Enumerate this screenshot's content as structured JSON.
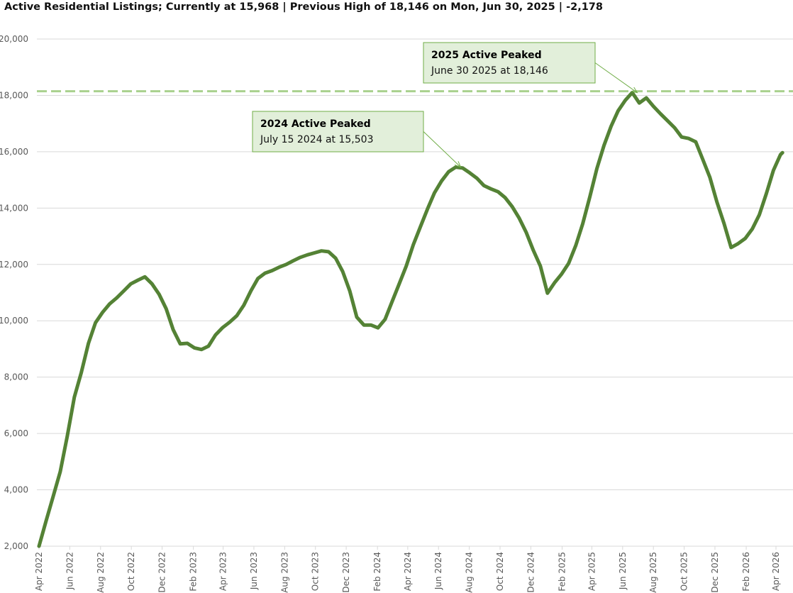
{
  "chart_data": {
    "type": "line",
    "title": "Active Residential Listings; Currently at 15,968 | Previous High of 18,146 on Mon, Jun 30, 2025 | -2,178",
    "xlabel": "",
    "ylabel": "",
    "ylim": [
      2000,
      20000
    ],
    "yticks": [
      "2,000",
      "4,000",
      "6,000",
      "8,000",
      "10,000",
      "12,000",
      "14,000",
      "16,000",
      "18,000",
      "20,000"
    ],
    "ytick_values": [
      2000,
      4000,
      6000,
      8000,
      10000,
      12000,
      14000,
      16000,
      18000,
      20000
    ],
    "xlim": [
      "2022-04-01",
      "2026-04-25"
    ],
    "xticks": [
      {
        "date": "2022-04-01",
        "label": "Apr 2022"
      },
      {
        "date": "2022-06-01",
        "label": "Jun 2022"
      },
      {
        "date": "2022-08-01",
        "label": "Aug 2022"
      },
      {
        "date": "2022-10-01",
        "label": "Oct 2022"
      },
      {
        "date": "2022-12-01",
        "label": "Dec 2022"
      },
      {
        "date": "2023-02-01",
        "label": "Feb 2023"
      },
      {
        "date": "2023-04-01",
        "label": "Apr 2023"
      },
      {
        "date": "2023-06-01",
        "label": "Jun 2023"
      },
      {
        "date": "2023-08-01",
        "label": "Aug 2023"
      },
      {
        "date": "2023-10-01",
        "label": "Oct 2023"
      },
      {
        "date": "2023-12-01",
        "label": "Dec 2023"
      },
      {
        "date": "2024-02-01",
        "label": "Feb 2024"
      },
      {
        "date": "2024-04-01",
        "label": "Apr 2024"
      },
      {
        "date": "2024-06-01",
        "label": "Jun 2024"
      },
      {
        "date": "2024-08-01",
        "label": "Aug 2024"
      },
      {
        "date": "2024-10-01",
        "label": "Oct 2024"
      },
      {
        "date": "2024-12-01",
        "label": "Dec 2024"
      },
      {
        "date": "2025-02-01",
        "label": "Feb 2025"
      },
      {
        "date": "2025-04-01",
        "label": "Apr 2025"
      },
      {
        "date": "2025-06-01",
        "label": "Jun 2025"
      },
      {
        "date": "2025-08-01",
        "label": "Aug 2025"
      },
      {
        "date": "2025-10-01",
        "label": "Oct 2025"
      },
      {
        "date": "2025-12-01",
        "label": "Dec 2025"
      },
      {
        "date": "2026-02-01",
        "label": "Feb 2026"
      },
      {
        "date": "2026-04-01",
        "label": "Apr 2026"
      }
    ],
    "grid": true,
    "series": [
      {
        "name": "Active Residential Listings",
        "color": "#548235",
        "start_date": "2022-04-01",
        "interval_days": 14,
        "values": [
          2000,
          2900,
          3760,
          4640,
          5900,
          7290,
          8170,
          9200,
          9930,
          10300,
          10600,
          10810,
          11060,
          11310,
          11440,
          11560,
          11310,
          10940,
          10430,
          9680,
          9180,
          9200,
          9040,
          8980,
          9100,
          9500,
          9760,
          9950,
          10180,
          10550,
          11060,
          11500,
          11690,
          11780,
          11900,
          12000,
          12130,
          12250,
          12340,
          12410,
          12480,
          12450,
          12220,
          11750,
          11060,
          10130,
          9850,
          9850,
          9750,
          10050,
          10680,
          11310,
          11940,
          12700,
          13330,
          13960,
          14540,
          14960,
          15290,
          15450,
          15420,
          15250,
          15060,
          14800,
          14680,
          14580,
          14370,
          14050,
          13640,
          13130,
          12500,
          11940,
          10980,
          11350,
          11660,
          12040,
          12670,
          13450,
          14400,
          15400,
          16220,
          16900,
          17450,
          17820,
          18100,
          17730,
          17910,
          17610,
          17350,
          17100,
          16850,
          16520,
          16470,
          16350,
          15720,
          15090,
          14210,
          13450,
          12600,
          12740,
          12920,
          13260,
          13760,
          14520,
          15340,
          15900
        ],
        "last_point": {
          "date": "2026-04-14",
          "value": 15968
        }
      }
    ],
    "reference_line": {
      "value": 18146,
      "color": "#a9d18e",
      "style": "dashed"
    },
    "annotations": [
      {
        "title": "2025 Active Peaked",
        "text": "June 30 2025 at 18,146",
        "date": "2025-06-30",
        "value": 18146
      },
      {
        "title": "2024 Active Peaked",
        "text": "July 15 2024 at 15,503",
        "date": "2024-07-15",
        "value": 15503
      }
    ],
    "colors": {
      "box_fill": "#e2efda",
      "box_border": "#70ad47",
      "arrow": "#70ad47"
    }
  }
}
